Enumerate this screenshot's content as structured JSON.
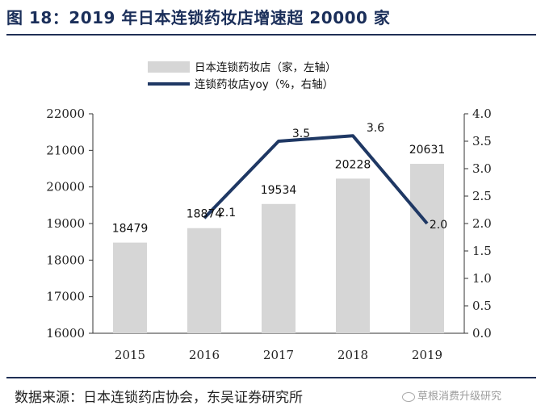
{
  "title": "图 18：2019 年日本连锁药妆店增速超 20000 家",
  "footer": "数据来源：日本连锁药店协会，东吴证券研究所",
  "watermark": "草根消费升级研究",
  "colors": {
    "bar": "#d6d6d6",
    "line": "#1f3864",
    "title": "#1b2f5a"
  },
  "chart_data": {
    "type": "bar",
    "categories": [
      "2015",
      "2016",
      "2017",
      "2018",
      "2019"
    ],
    "series": [
      {
        "name": "日本连锁药妆店（家，左轴）",
        "kind": "bar",
        "axis": "left",
        "values": [
          18479,
          18874,
          19534,
          20228,
          20631
        ],
        "labels": [
          "18479",
          "18874",
          "19534",
          "20228",
          "20631"
        ]
      },
      {
        "name": "连锁药妆店yoy（%，右轴）",
        "kind": "line",
        "axis": "right",
        "x": [
          "2016",
          "2017",
          "2018",
          "2019"
        ],
        "values": [
          2.1,
          3.5,
          3.6,
          2.0
        ],
        "labels": [
          "2.1",
          "3.5",
          "3.6",
          "2.0"
        ]
      }
    ],
    "y_left": {
      "min": 16000,
      "max": 22000,
      "ticks": [
        "16000",
        "17000",
        "18000",
        "19000",
        "20000",
        "21000",
        "22000"
      ]
    },
    "y_right": {
      "min": 0,
      "max": 4,
      "ticks": [
        "0.0",
        "0.5",
        "1.0",
        "1.5",
        "2.0",
        "2.5",
        "3.0",
        "3.5",
        "4.0"
      ]
    },
    "legend": "top-center",
    "grid": false
  }
}
